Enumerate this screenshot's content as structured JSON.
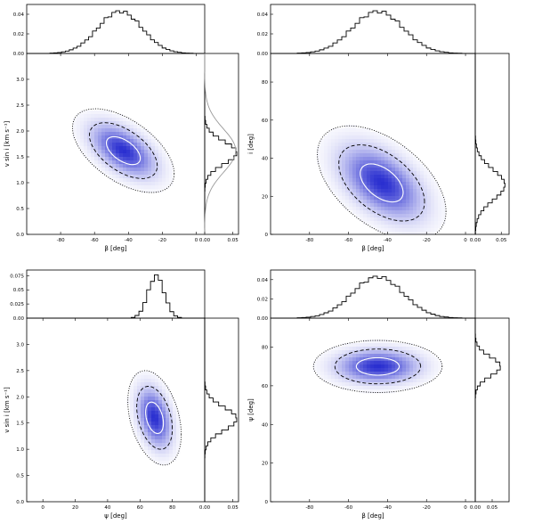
{
  "chart_data": [
    {
      "type": "heatmap",
      "panel": "top-left",
      "xlabel": "β [deg]",
      "ylabel": "v sin i [km s⁻¹]",
      "xlim": [
        -100,
        5
      ],
      "ylim": [
        0.0,
        3.5
      ],
      "xticks": [
        -80,
        -60,
        -40,
        -20,
        0
      ],
      "yticks": [
        0.0,
        0.5,
        1.0,
        1.5,
        2.0,
        2.5,
        3.0
      ],
      "density": {
        "center": [
          -43,
          1.62
        ],
        "sigma": [
          10,
          0.27
        ],
        "rho": -0.55
      },
      "contours": [
        {
          "style": "solid",
          "level_sigma": 1
        },
        {
          "style": "dashed",
          "level_sigma": 2
        },
        {
          "style": "dotted",
          "level_sigma": 3
        }
      ],
      "top_histogram": {
        "variable": "β",
        "yticks": [
          0.0,
          0.02,
          0.04
        ],
        "ylim": [
          0,
          0.05
        ],
        "center": -45,
        "sigma": 13,
        "peak": 0.043
      },
      "side_histogram": {
        "variable": "v sin i",
        "xticks": [
          0.0,
          0.05
        ],
        "xlim": [
          0,
          0.06
        ],
        "center": 1.58,
        "sigma": 0.22,
        "peak": 0.057,
        "prior_curve": {
          "center": 1.62,
          "sigma": 0.42,
          "peak": 0.055
        }
      }
    },
    {
      "type": "heatmap",
      "panel": "top-right",
      "xlabel": "β [deg]",
      "ylabel": "i [deg]",
      "xlim": [
        -100,
        5
      ],
      "ylim": [
        0,
        95
      ],
      "xticks": [
        -80,
        -60,
        -40,
        -20,
        0
      ],
      "yticks": [
        0,
        20,
        40,
        60,
        80
      ],
      "density": {
        "center": [
          -43,
          27
        ],
        "sigma": [
          11,
          10
        ],
        "rho": -0.5
      },
      "contours": [
        {
          "style": "solid",
          "level_sigma": 1
        },
        {
          "style": "dashed",
          "level_sigma": 2
        },
        {
          "style": "dotted",
          "level_sigma": 3
        }
      ],
      "top_histogram": {
        "variable": "β",
        "yticks": [
          0.0,
          0.02,
          0.04
        ],
        "ylim": [
          0,
          0.05
        ],
        "center": -45,
        "sigma": 13,
        "peak": 0.043
      },
      "side_histogram": {
        "variable": "i",
        "xticks": [
          0.0,
          0.05
        ],
        "xlim": [
          0,
          0.065
        ],
        "center": 26,
        "sigma": 8,
        "peak": 0.057
      }
    },
    {
      "type": "heatmap",
      "panel": "bottom-left",
      "xlabel": "ψ [deg]",
      "ylabel": "v sin i [km s⁻¹]",
      "xlim": [
        -10,
        100
      ],
      "ylim": [
        0.0,
        3.5
      ],
      "xticks": [
        0,
        20,
        40,
        60,
        80
      ],
      "yticks": [
        0.0,
        0.5,
        1.0,
        1.5,
        2.0,
        2.5,
        3.0
      ],
      "density": {
        "center": [
          69,
          1.6
        ],
        "sigma": [
          5.5,
          0.3
        ],
        "rho": -0.35
      },
      "contours": [
        {
          "style": "solid",
          "level_sigma": 1
        },
        {
          "style": "dashed",
          "level_sigma": 2
        },
        {
          "style": "dotted",
          "level_sigma": 3
        }
      ],
      "top_histogram": {
        "variable": "ψ",
        "yticks": [
          0.0,
          0.025,
          0.05,
          0.075
        ],
        "ylim": [
          0,
          0.085
        ],
        "center": 70,
        "sigma": 5,
        "peak": 0.075
      },
      "side_histogram": {
        "variable": "v sin i",
        "xticks": [
          0.0,
          0.05
        ],
        "xlim": [
          0,
          0.06
        ],
        "center": 1.58,
        "sigma": 0.22,
        "peak": 0.057
      }
    },
    {
      "type": "heatmap",
      "panel": "bottom-right",
      "xlabel": "β [deg]",
      "ylabel": "ψ [deg]",
      "xlim": [
        -100,
        5
      ],
      "ylim": [
        0,
        95
      ],
      "xticks": [
        -80,
        -60,
        -40,
        -20,
        0
      ],
      "yticks": [
        0,
        20,
        40,
        60,
        80
      ],
      "density": {
        "center": [
          -45,
          70
        ],
        "sigma": [
          11,
          4.5
        ],
        "rho": 0.0
      },
      "contours": [
        {
          "style": "solid",
          "level_sigma": 1
        },
        {
          "style": "dashed",
          "level_sigma": 2
        },
        {
          "style": "dotted",
          "level_sigma": 3
        }
      ],
      "top_histogram": {
        "variable": "β",
        "yticks": [
          0.0,
          0.02,
          0.04
        ],
        "ylim": [
          0,
          0.05
        ],
        "center": -45,
        "sigma": 13,
        "peak": 0.043
      },
      "side_histogram": {
        "variable": "ψ",
        "xticks": [
          0.0,
          0.05
        ],
        "xlim": [
          0,
          0.1
        ],
        "center": 70,
        "sigma": 5,
        "peak": 0.075
      }
    }
  ],
  "colors": {
    "density_high": "#2a2fd0",
    "density_low": "#ffffff",
    "contour_inner": "#ffffff",
    "contour_outer": "#000000",
    "prior_curve": "#999999"
  }
}
